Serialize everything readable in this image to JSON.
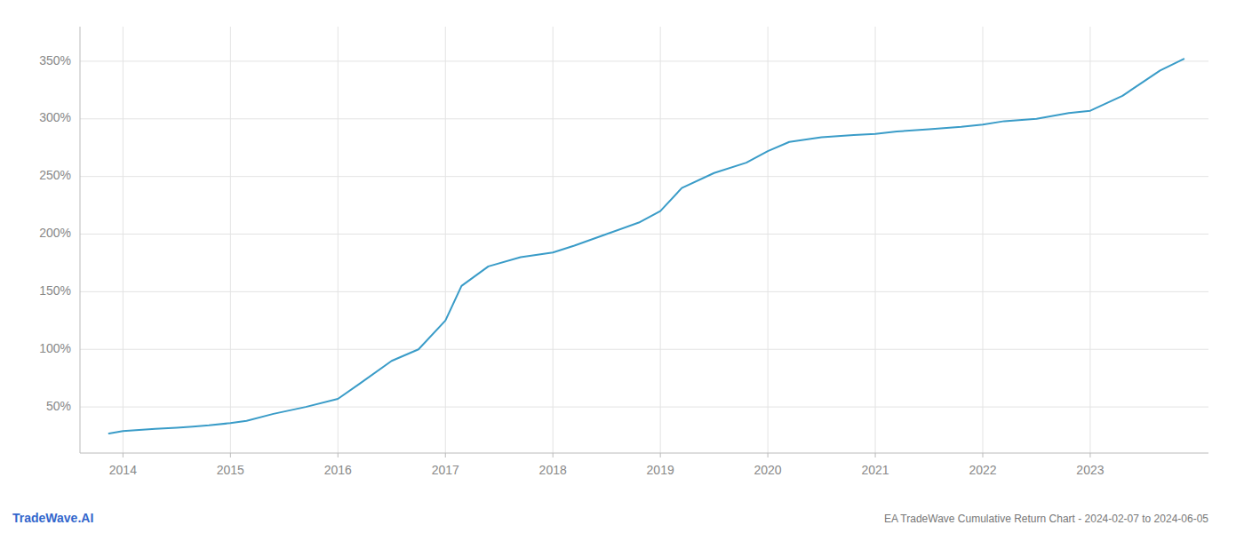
{
  "chart_data": {
    "type": "line",
    "title": "EA TradeWave Cumulative Return Chart - 2024-02-07 to 2024-06-05",
    "annotations": [
      {
        "text": "TradeWave.AI",
        "color": "#3366cc"
      }
    ],
    "color": "#3a9cc8",
    "grid": true,
    "x": [
      2013.87,
      2014.0,
      2014.15,
      2014.3,
      2014.5,
      2014.65,
      2014.8,
      2015.0,
      2015.15,
      2015.4,
      2015.7,
      2016.0,
      2016.2,
      2016.5,
      2016.75,
      2017.0,
      2017.15,
      2017.4,
      2017.7,
      2018.0,
      2018.2,
      2018.5,
      2018.8,
      2019.0,
      2019.2,
      2019.5,
      2019.8,
      2020.0,
      2020.2,
      2020.5,
      2020.8,
      2021.0,
      2021.2,
      2021.5,
      2021.8,
      2022.0,
      2022.2,
      2022.5,
      2022.8,
      2023.0,
      2023.3,
      2023.65,
      2023.87
    ],
    "values": [
      27,
      29,
      30,
      31,
      32,
      33,
      34,
      36,
      38,
      44,
      50,
      57,
      70,
      90,
      100,
      125,
      155,
      172,
      180,
      184,
      190,
      200,
      210,
      220,
      240,
      253,
      262,
      272,
      280,
      284,
      286,
      287,
      289,
      291,
      293,
      295,
      298,
      300,
      305,
      307,
      320,
      342,
      352
    ],
    "xlim": [
      2013.6,
      2024.1
    ],
    "ylim": [
      10,
      380
    ],
    "xticks": [
      2014,
      2015,
      2016,
      2017,
      2018,
      2019,
      2020,
      2021,
      2022,
      2023
    ],
    "yticks": [
      {
        "value": 50,
        "label": "50%"
      },
      {
        "value": 100,
        "label": "100%"
      },
      {
        "value": 150,
        "label": "150%"
      },
      {
        "value": 200,
        "label": "200%"
      },
      {
        "value": 250,
        "label": "250%"
      },
      {
        "value": 300,
        "label": "300%"
      },
      {
        "value": 350,
        "label": "350%"
      }
    ]
  }
}
